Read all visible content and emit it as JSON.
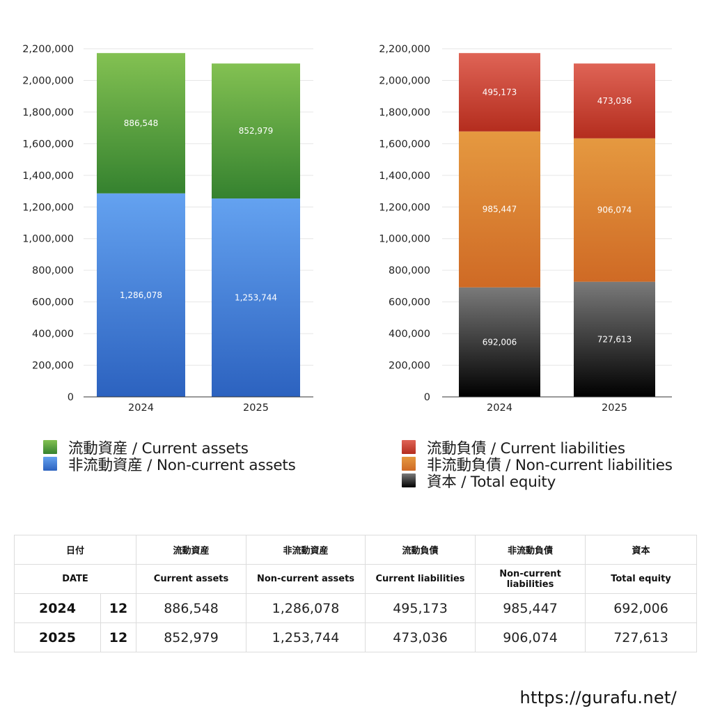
{
  "chart_data": [
    {
      "type": "bar",
      "stacked": true,
      "categories": [
        "2024",
        "2025"
      ],
      "ylim": [
        0,
        2200000
      ],
      "yticks": [
        0,
        200000,
        400000,
        600000,
        800000,
        1000000,
        1200000,
        1400000,
        1600000,
        1800000,
        2000000,
        2200000
      ],
      "ytick_labels": [
        "0",
        "200,000",
        "400,000",
        "600,000",
        "800,000",
        "1,000,000",
        "1,200,000",
        "1,400,000",
        "1,600,000",
        "1,800,000",
        "2,000,000",
        "2,200,000"
      ],
      "grid": true,
      "series": [
        {
          "name": "非流動資産 / Non-current assets",
          "values": [
            1286078,
            1253744
          ],
          "labels": [
            "1,286,078",
            "1,253,744"
          ],
          "color_top": "#64a2f0",
          "color_bottom": "#2c62bf"
        },
        {
          "name": "流動資産 / Current assets",
          "values": [
            886548,
            852979
          ],
          "labels": [
            "886,548",
            "852,979"
          ],
          "color_top": "#83c152",
          "color_bottom": "#35822f"
        }
      ]
    },
    {
      "type": "bar",
      "stacked": true,
      "categories": [
        "2024",
        "2025"
      ],
      "ylim": [
        0,
        2200000
      ],
      "yticks": [
        0,
        200000,
        400000,
        600000,
        800000,
        1000000,
        1200000,
        1400000,
        1600000,
        1800000,
        2000000,
        2200000
      ],
      "ytick_labels": [
        "0",
        "200,000",
        "400,000",
        "600,000",
        "800,000",
        "1,000,000",
        "1,200,000",
        "1,400,000",
        "1,600,000",
        "1,800,000",
        "2,000,000",
        "2,200,000"
      ],
      "grid": true,
      "series": [
        {
          "name": "資本 / Total equity",
          "values": [
            692006,
            727613
          ],
          "labels": [
            "692,006",
            "727,613"
          ],
          "color_top": "#7a7a7a",
          "color_bottom": "#000000"
        },
        {
          "name": "非流動負債 / Non-current liabilities",
          "values": [
            985447,
            906074
          ],
          "labels": [
            "985,447",
            "906,074"
          ],
          "color_top": "#e59940",
          "color_bottom": "#cf6a25"
        },
        {
          "name": "流動負債 / Current liabilities",
          "values": [
            495173,
            473036
          ],
          "labels": [
            "495,173",
            "473,036"
          ],
          "color_top": "#df6456",
          "color_bottom": "#b42d1e"
        }
      ]
    }
  ],
  "legend_left": [
    {
      "label": "流動資産 / Current assets",
      "color": "#4c9e3d"
    },
    {
      "label": "非流動資産 / Non-current assets",
      "color": "#3f7ed8"
    }
  ],
  "legend_right": [
    {
      "label": "流動負債 / Current liabilities",
      "color": "#cc4535"
    },
    {
      "label": "非流動負債 / Non-current liabilities",
      "color": "#de8433"
    },
    {
      "label": "資本 / Total equity",
      "color": "#2f2f2f"
    }
  ],
  "table": {
    "header_jp": {
      "date": "日付",
      "ca": "流動資産",
      "nca": "非流動資産",
      "cl": "流動負債",
      "ncl": "非流動負債",
      "eq": "資本"
    },
    "header_en": {
      "date": "DATE",
      "ca": "Current assets",
      "nca": "Non-current assets",
      "cl": "Current liabilities",
      "ncl": "Non-current liabilities",
      "eq": "Total equity"
    },
    "rows": [
      {
        "year": "2024",
        "month": "12",
        "ca": "886,548",
        "nca": "1,286,078",
        "cl": "495,173",
        "ncl": "985,447",
        "eq": "692,006"
      },
      {
        "year": "2025",
        "month": "12",
        "ca": "852,979",
        "nca": "1,253,744",
        "cl": "473,036",
        "ncl": "906,074",
        "eq": "727,613"
      }
    ]
  },
  "site_url": "https://gurafu.net/"
}
